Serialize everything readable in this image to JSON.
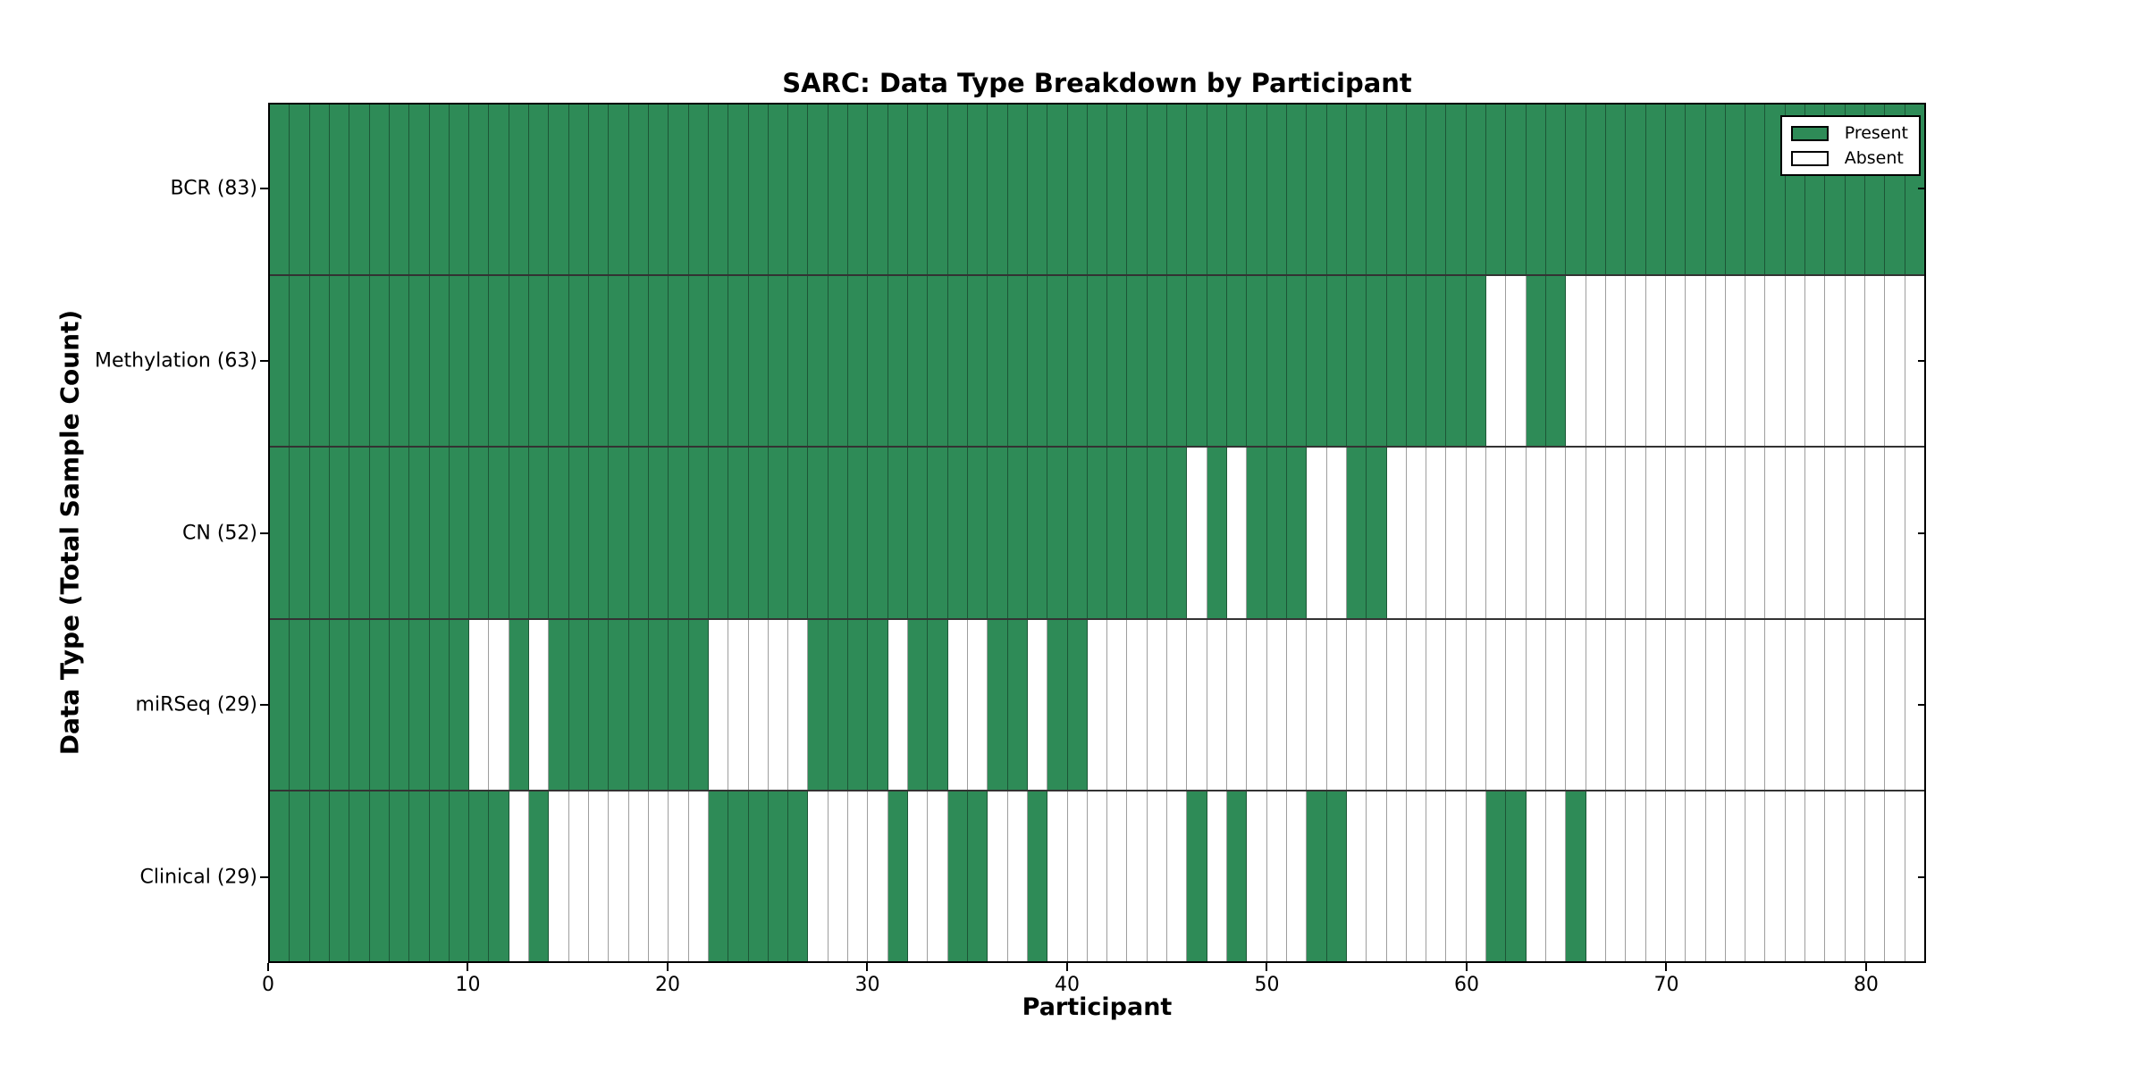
{
  "figure": {
    "title": "SARC: Data Type Breakdown by Participant",
    "xlabel": "Participant",
    "ylabel": "Data Type (Total Sample Count)"
  },
  "chart_data": {
    "type": "heatmap",
    "title": "SARC: Data Type Breakdown by Participant",
    "xlabel": "Participant",
    "ylabel": "Data Type (Total Sample Count)",
    "x_range": [
      0,
      83
    ],
    "n_participants": 83,
    "x_ticks": [
      {
        "label": "0",
        "value": 0
      },
      {
        "label": "10",
        "value": 10
      },
      {
        "label": "20",
        "value": 20
      },
      {
        "label": "30",
        "value": 30
      },
      {
        "label": "40",
        "value": 40
      },
      {
        "label": "50",
        "value": 50
      },
      {
        "label": "60",
        "value": 60
      },
      {
        "label": "70",
        "value": 70
      },
      {
        "label": "80",
        "value": 80
      }
    ],
    "present_color": "#2e8b57",
    "absent_color": "#ffffff",
    "grid": true,
    "legend_position": "upper right",
    "legend": [
      {
        "label": "Present",
        "color": "#2e8b57"
      },
      {
        "label": "Absent",
        "color": "#ffffff"
      }
    ],
    "rows": [
      {
        "label": "BCR (83)",
        "data_type": "BCR",
        "total_samples": 83,
        "present_ranges": [
          [
            0,
            82
          ]
        ]
      },
      {
        "label": "Methylation (63)",
        "data_type": "Methylation",
        "total_samples": 63,
        "present_ranges": [
          [
            0,
            60
          ],
          [
            63,
            64
          ]
        ]
      },
      {
        "label": "CN (52)",
        "data_type": "CN",
        "total_samples": 52,
        "present_ranges": [
          [
            0,
            45
          ],
          [
            47,
            47
          ],
          [
            49,
            51
          ],
          [
            54,
            55
          ]
        ]
      },
      {
        "label": "miRSeq (29)",
        "data_type": "miRSeq",
        "total_samples": 29,
        "present_ranges": [
          [
            0,
            9
          ],
          [
            12,
            12
          ],
          [
            14,
            21
          ],
          [
            27,
            30
          ],
          [
            32,
            33
          ],
          [
            36,
            37
          ],
          [
            39,
            40
          ]
        ]
      },
      {
        "label": "Clinical (29)",
        "data_type": "Clinical",
        "total_samples": 29,
        "present_ranges": [
          [
            0,
            11
          ],
          [
            13,
            13
          ],
          [
            22,
            26
          ],
          [
            31,
            31
          ],
          [
            34,
            35
          ],
          [
            38,
            38
          ],
          [
            46,
            46
          ],
          [
            48,
            48
          ],
          [
            52,
            53
          ],
          [
            61,
            62
          ],
          [
            65,
            65
          ]
        ]
      }
    ]
  }
}
